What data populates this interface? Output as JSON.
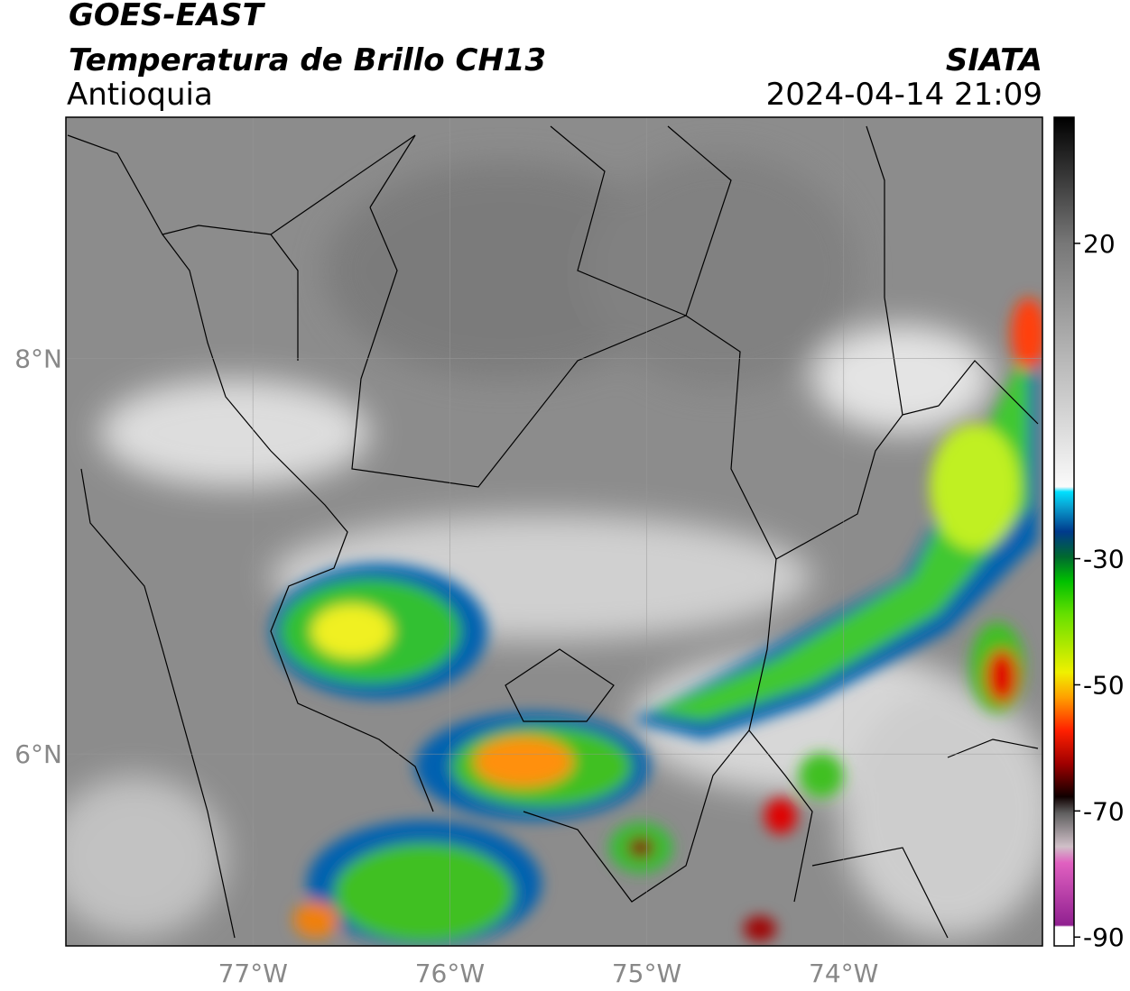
{
  "header": {
    "satellite": "GOES-EAST",
    "product": "Temperatura de Brillo CH13",
    "region": "Antioquia",
    "source": "SIATA",
    "datetime": "2024-04-14 21:09"
  },
  "map": {
    "lonlim": [
      -77.95,
      -72.99
    ],
    "latlim": [
      5.03,
      9.22
    ],
    "lon_ticks": [
      {
        "value": -77,
        "label": "77°W"
      },
      {
        "value": -76,
        "label": "76°W"
      },
      {
        "value": -75,
        "label": "75°W"
      },
      {
        "value": -74,
        "label": "74°W"
      }
    ],
    "lat_ticks": [
      {
        "value": 8,
        "label": "8°N"
      },
      {
        "value": 6,
        "label": "6°N"
      }
    ],
    "grid": true
  },
  "colorbar": {
    "range": [
      -91.4,
      40
    ],
    "ticks": [
      20,
      -30,
      -50,
      -70,
      -90
    ]
  }
}
